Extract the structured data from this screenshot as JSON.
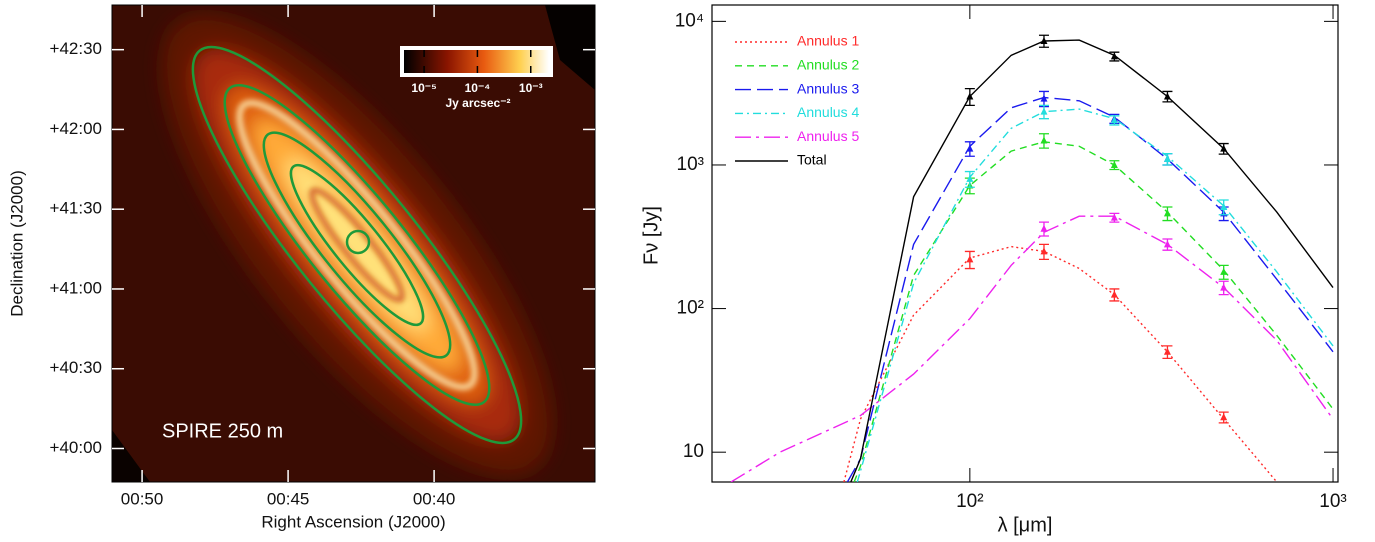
{
  "chart_data": [
    {
      "type": "image",
      "annotation": "SPIRE 250  m",
      "x_label": "Right Ascension (J2000)",
      "y_label": "Declination (J2000)",
      "xlim": [
        51.03,
        34.49
      ],
      "xticks": [
        {
          "value": 50,
          "label": "00:50"
        },
        {
          "value": 45,
          "label": "00:45"
        },
        {
          "value": 40,
          "label": "00:40"
        }
      ],
      "ylim": [
        39.79,
        42.78
      ],
      "yticks": [
        {
          "value": 42.5,
          "label": "+42:30"
        },
        {
          "value": 42.0,
          "label": "+42:00"
        },
        {
          "value": 41.5,
          "label": "+41:30"
        },
        {
          "value": 41.0,
          "label": "+41:00"
        },
        {
          "value": 40.5,
          "label": "+40:30"
        },
        {
          "value": 40.0,
          "label": "+40:00"
        }
      ],
      "colorbar": {
        "label": "Jy arcsec⁻²",
        "log": true,
        "lim": [
          4.2e-06,
          0.0022
        ],
        "ticks": [
          {
            "value": 1e-05,
            "label": "10⁻⁵"
          },
          {
            "value": 0.0001,
            "label": "10⁻⁴"
          },
          {
            "value": 0.001,
            "label": "10⁻³"
          }
        ]
      }
    },
    {
      "type": "line",
      "x_label": "λ  [μm]",
      "y_label": "Fν  [Jy]",
      "xlog": true,
      "ylog": true,
      "xlim": [
        19.5,
        1032
      ],
      "xticks": [
        {
          "value": 100,
          "label": "10²"
        },
        {
          "value": 1000,
          "label": "10³"
        }
      ],
      "ylim": [
        6.2,
        13000
      ],
      "yticks": [
        10,
        {
          "value": 100,
          "label": "10²"
        },
        {
          "value": 1000,
          "label": "10³"
        },
        {
          "value": 10000,
          "label": "10⁴"
        }
      ],
      "legend": "upper left",
      "series": [
        {
          "name": "Annulus 1",
          "color": "#ff2a2a",
          "linestyle": "dotted",
          "x": [
            100,
            160,
            250,
            350,
            500
          ],
          "values": [
            220,
            250,
            125,
            50,
            17.5
          ],
          "errors": [
            30,
            30,
            12,
            5,
            1.5
          ],
          "fit_x": [
            45,
            50,
            70,
            100,
            130,
            160,
            200,
            250,
            350,
            500,
            700
          ],
          "fit_values": [
            6.2,
            17,
            90,
            225,
            270,
            250,
            190,
            125,
            50,
            17,
            6.2
          ]
        },
        {
          "name": "Annulus 2",
          "color": "#22dd22",
          "linestyle": "dashed",
          "x": [
            100,
            160,
            250,
            350,
            500
          ],
          "values": [
            720,
            1480,
            1000,
            460,
            180
          ],
          "errors": [
            90,
            170,
            70,
            50,
            20
          ],
          "fit_x": [
            48,
            50,
            70,
            100,
            130,
            160,
            200,
            250,
            350,
            500,
            700,
            1000
          ],
          "fit_values": [
            6.2,
            8,
            170,
            720,
            1250,
            1450,
            1350,
            1000,
            470,
            185,
            65,
            20
          ]
        },
        {
          "name": "Annulus 3",
          "color": "#1a1aee",
          "linestyle": "long-dashed",
          "x": [
            100,
            160,
            250,
            350,
            500
          ],
          "values": [
            1300,
            2900,
            2100,
            1100,
            460
          ],
          "errors": [
            150,
            350,
            150,
            100,
            50
          ],
          "fit_x": [
            46,
            50,
            70,
            100,
            130,
            160,
            200,
            250,
            350,
            500,
            700,
            1000
          ],
          "fit_values": [
            6.2,
            9,
            280,
            1350,
            2500,
            2950,
            2800,
            2150,
            1100,
            470,
            160,
            50
          ]
        },
        {
          "name": "Annulus 4",
          "color": "#22dddd",
          "linestyle": "dash-dot",
          "x": [
            100,
            160,
            250,
            350,
            500
          ],
          "values": [
            800,
            2350,
            2050,
            1100,
            510
          ],
          "errors": [
            100,
            250,
            150,
            100,
            60
          ],
          "fit_x": [
            49,
            50,
            70,
            100,
            130,
            160,
            200,
            250,
            350,
            500,
            700,
            1000
          ],
          "fit_values": [
            6.2,
            7.4,
            150,
            820,
            1800,
            2350,
            2450,
            2100,
            1150,
            520,
            180,
            55
          ]
        },
        {
          "name": "Annulus 5",
          "color": "#ee22ee",
          "linestyle": "long-dash-dot",
          "x": [
            160,
            250,
            350,
            500
          ],
          "values": [
            360,
            430,
            280,
            140
          ],
          "errors": [
            40,
            30,
            25,
            15
          ],
          "fit_x": [
            22,
            30,
            50,
            70,
            100,
            130,
            160,
            200,
            250,
            350,
            500,
            700,
            1000
          ],
          "fit_values": [
            6.2,
            10,
            18,
            35,
            85,
            200,
            340,
            440,
            440,
            280,
            140,
            60,
            17
          ]
        },
        {
          "name": "Total",
          "color": "#000000",
          "linestyle": "solid",
          "x": [
            100,
            160,
            250,
            350,
            500
          ],
          "values": [
            3000,
            7300,
            5700,
            3000,
            1300
          ],
          "errors": [
            400,
            700,
            400,
            250,
            110
          ],
          "fit_x": [
            47,
            50,
            70,
            100,
            130,
            160,
            200,
            250,
            350,
            500,
            700,
            1000
          ],
          "fit_values": [
            6.2,
            9,
            600,
            3000,
            5800,
            7300,
            7400,
            5800,
            3000,
            1300,
            470,
            140
          ]
        }
      ]
    }
  ]
}
